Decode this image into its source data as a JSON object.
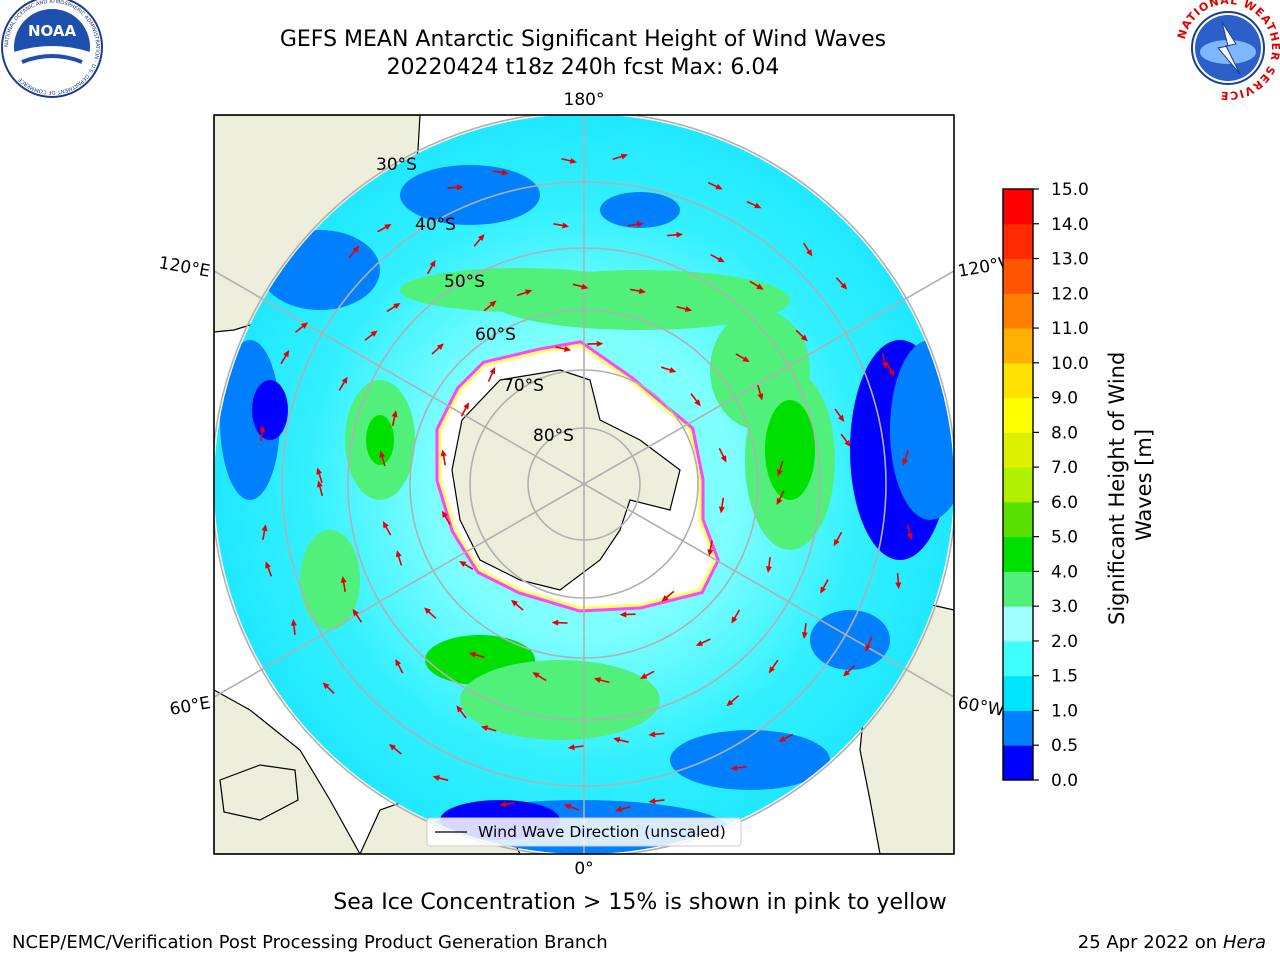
{
  "title": {
    "line1": "GEFS MEAN Antarctic Significant Height of Wind Waves",
    "line2": "20220424 t18z 240h fcst   Max: 6.04"
  },
  "logos": {
    "left": "noaa-logo",
    "right": "nws-logo",
    "left_text": "NOAA",
    "left_ring_text": "NATIONAL OCEANIC AND ATMOSPHERIC ADMINISTRATION · U.S. DEPARTMENT OF COMMERCE",
    "right_ring_text": "NATIONAL WEATHER SERVICE"
  },
  "map": {
    "projection": "south-polar-stereographic",
    "lat_labels": [
      "30°S",
      "40°S",
      "50°S",
      "60°S",
      "70°S",
      "80°S"
    ],
    "lon_labels": {
      "top": "180°",
      "bottom": "0°",
      "left_upper": "120°E",
      "left_lower": "60°E",
      "right_upper": "120°W",
      "right_lower": "60°W"
    },
    "legend_text": "Wind Wave Direction (unscaled)",
    "colors": {
      "land": "#eeeedd",
      "ice_edge_pink": "#ff44ff",
      "ice_edge_yellow": "#ffff66",
      "arrow": "#e60000",
      "grid": "#b0b0b0"
    }
  },
  "colorbar": {
    "label": "Significant Height of Wind Waves [m]",
    "label_line1": "Significant Height of Wind",
    "label_line2": "Waves [m]",
    "ticks": [
      "0.0",
      "0.5",
      "1.0",
      "1.5",
      "2.0",
      "3.0",
      "4.0",
      "5.0",
      "6.0",
      "7.0",
      "8.0",
      "9.0",
      "10.0",
      "11.0",
      "12.0",
      "13.0",
      "14.0",
      "15.0"
    ],
    "colors": [
      "#0000ff",
      "#0080ff",
      "#00e5ff",
      "#40ffff",
      "#a0ffff",
      "#50f07a",
      "#00e000",
      "#58e000",
      "#b0f000",
      "#ddf000",
      "#ffff00",
      "#ffe000",
      "#ffb000",
      "#ff8000",
      "#ff5500",
      "#ff2a00",
      "#ff0000"
    ]
  },
  "footer": {
    "caption": "Sea Ice Concentration > 15% is shown in pink to yellow",
    "left": "NCEP/EMC/Verification Post Processing Product Generation Branch",
    "right_prefix": "25 Apr 2022 on ",
    "right_italic": "Hera"
  }
}
